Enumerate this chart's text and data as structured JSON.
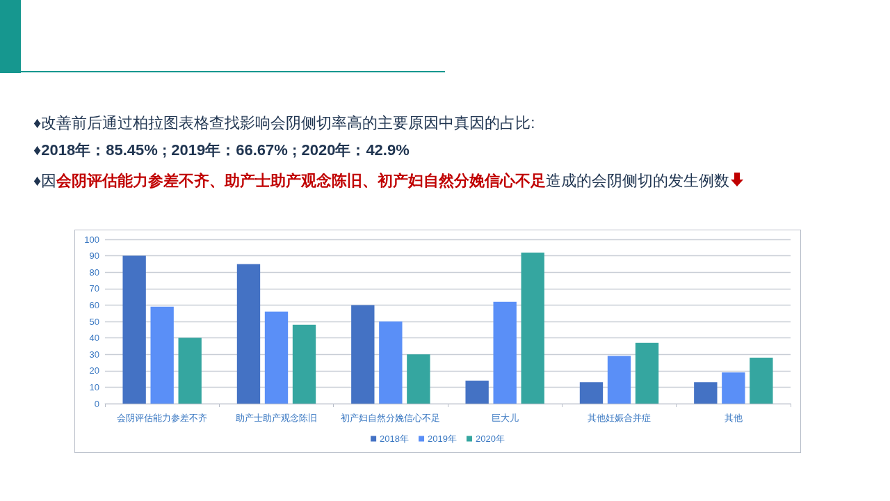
{
  "chart_data": {
    "type": "bar",
    "title": "♦改善前后通过柏拉图表格查找影响会阴侧切率高的主要原因中真因的占比:",
    "subtitle": "♦2018年：85.45% ; 2019年：66.67% ; 2020年：42.9%",
    "annotations": [
      "♦因",
      "会阴评估能力参差不齐、助产士助产观念陈旧、初产妇自然分娩信心不足",
      "造成的会阴侧切的发生例数"
    ],
    "categories": [
      "会阴评估能力参差不齐",
      "助产士助产观念陈旧",
      "初产妇自然分娩信心不足",
      "巨大儿",
      "其他妊娠合并症",
      "其他"
    ],
    "series": [
      {
        "name": "2018年",
        "color": "#4472c4",
        "values": [
          90,
          85,
          60,
          14,
          13,
          13
        ]
      },
      {
        "name": "2019年",
        "color": "#5a8ff7",
        "values": [
          59,
          56,
          50,
          62,
          29,
          19
        ]
      },
      {
        "name": "2020年",
        "color": "#35a6a0",
        "values": [
          40,
          48,
          30,
          92,
          37,
          28
        ]
      }
    ],
    "ylim": [
      0,
      100
    ],
    "yticks": [
      0,
      10,
      20,
      30,
      40,
      50,
      60,
      70,
      80,
      90,
      100
    ],
    "grid": "y",
    "legend": "bottom"
  }
}
